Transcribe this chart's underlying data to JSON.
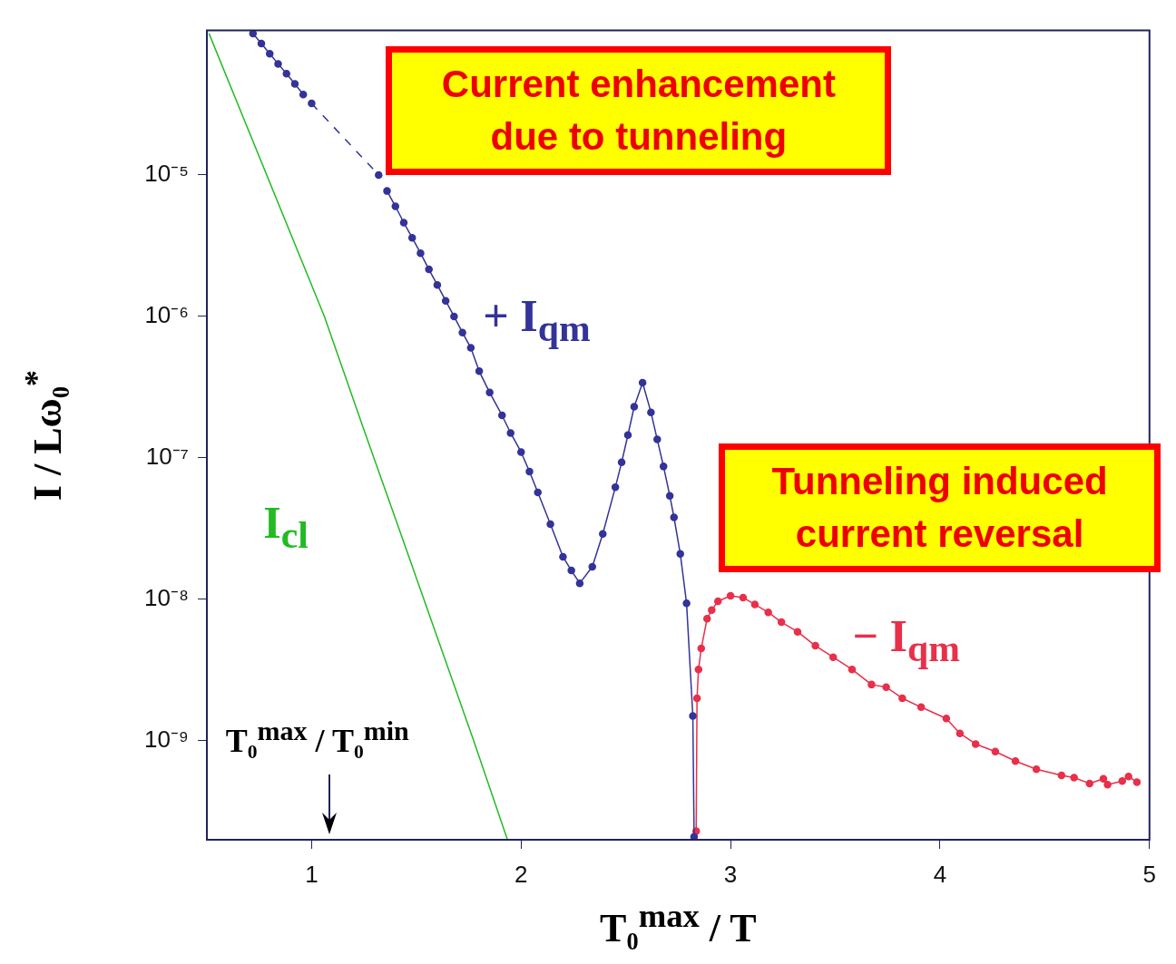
{
  "chart_data": {
    "type": "line",
    "log": "y",
    "marker": "circle",
    "xlabel": "T₀$^{max}$ / T",
    "ylabel": "I / Lω₀$^{*}$",
    "xlim": [
      0.5,
      5
    ],
    "xticks": [
      1,
      2,
      3,
      4,
      5
    ],
    "ylim": [
      2e-10,
      0.000105
    ],
    "yticks": [
      {
        "value": 1e-09,
        "label": "10⁻⁹"
      },
      {
        "value": 1e-08,
        "label": "10⁻⁸"
      },
      {
        "value": 1e-07,
        "label": "10⁻⁷"
      },
      {
        "value": 1e-06,
        "label": "10⁻⁶"
      },
      {
        "value": 1e-05,
        "label": "10⁻⁵"
      }
    ],
    "annotations": [
      "Current enhancement due to tunneling",
      "Tunneling induced current reversal",
      "T₀$^{max}$ / T₀$^{min}$"
    ],
    "series": [
      {
        "name": "I$_{cl}$",
        "color": "#22bb22",
        "marker": "none",
        "x": [
          0.51,
          1.061,
          1.251,
          1.416,
          1.774,
          1.935
        ],
        "values": [
          0.0001,
          1e-06,
          1.56e-07,
          3.2e-08,
          1e-09,
          2e-10
        ]
      },
      {
        "color": "#333399",
        "x": [
          0.72,
          0.76,
          0.8,
          0.84,
          0.88,
          0.92,
          0.96
        ],
        "values": [
          0.0001,
          8.5e-05,
          7.2e-05,
          6.1e-05,
          5.2e-05,
          4.4e-05,
          3.7e-05
        ]
      },
      {
        "color": "#333399",
        "line_style": "dashed",
        "x": [
          1.0,
          1.32
        ],
        "values": [
          3.2e-05,
          1e-05
        ]
      },
      {
        "name": "+ I$_{qm}$",
        "color": "#333399",
        "x": [
          1.36,
          1.4,
          1.44,
          1.48,
          1.52,
          1.56,
          1.6,
          1.64,
          1.68,
          1.72,
          1.76,
          1.8,
          1.85,
          1.909,
          1.95,
          2.0,
          2.04,
          2.08,
          2.14,
          2.2,
          2.24,
          2.28,
          2.34,
          2.39,
          2.45,
          2.48,
          2.51,
          2.54,
          2.58,
          2.62,
          2.65,
          2.68,
          2.71,
          2.73,
          2.76,
          2.79,
          2.82,
          2.826
        ],
        "values": [
          7.7e-06,
          6e-06,
          4.6e-06,
          3.6e-06,
          2.8e-06,
          2.15e-06,
          1.67e-06,
          1.29e-06,
          1e-06,
          7.7e-07,
          6e-07,
          4.1e-07,
          2.9e-07,
          2e-07,
          1.5e-07,
          1.1e-07,
          8e-08,
          5.7e-08,
          3.4e-08,
          2e-08,
          1.6e-08,
          1.3e-08,
          1.7e-08,
          2.9e-08,
          6.2e-08,
          9.3e-08,
          1.45e-07,
          2.3e-07,
          3.4e-07,
          2.1e-07,
          1.35e-07,
          8.7e-08,
          5.4e-08,
          3.8e-08,
          2.1e-08,
          9.4e-09,
          1.5e-09,
          2.1e-10
        ]
      },
      {
        "name": "− I$_{qm}$",
        "color": "#e8304a",
        "x": [
          2.836,
          2.84,
          2.847,
          2.86,
          2.888,
          2.91,
          2.94,
          3.0,
          3.06,
          3.116,
          3.18,
          3.243,
          3.32,
          3.405,
          3.49,
          3.58,
          3.673,
          3.743,
          3.82,
          3.91,
          4.03,
          4.095,
          4.17,
          4.264,
          4.36,
          4.46,
          4.58,
          4.64,
          4.714,
          4.78,
          4.8,
          4.87,
          4.9,
          4.94
        ],
        "values": [
          2.3e-10,
          2e-09,
          3.2e-09,
          4.5e-09,
          7.3e-09,
          8.4e-09,
          9.7e-09,
          1.06e-08,
          1.03e-08,
          9.2e-09,
          8.1e-09,
          6.9e-09,
          5.9e-09,
          4.7e-09,
          3.9e-09,
          3.2e-09,
          2.5e-09,
          2.4e-09,
          2e-09,
          1.73e-09,
          1.44e-09,
          1.13e-09,
          9.5e-10,
          8.4e-10,
          7.2e-10,
          6.3e-10,
          5.7e-10,
          5.5e-10,
          5e-10,
          5.4e-10,
          4.9e-10,
          5.2e-10,
          5.6e-10,
          5.1e-10
        ]
      }
    ]
  }
}
